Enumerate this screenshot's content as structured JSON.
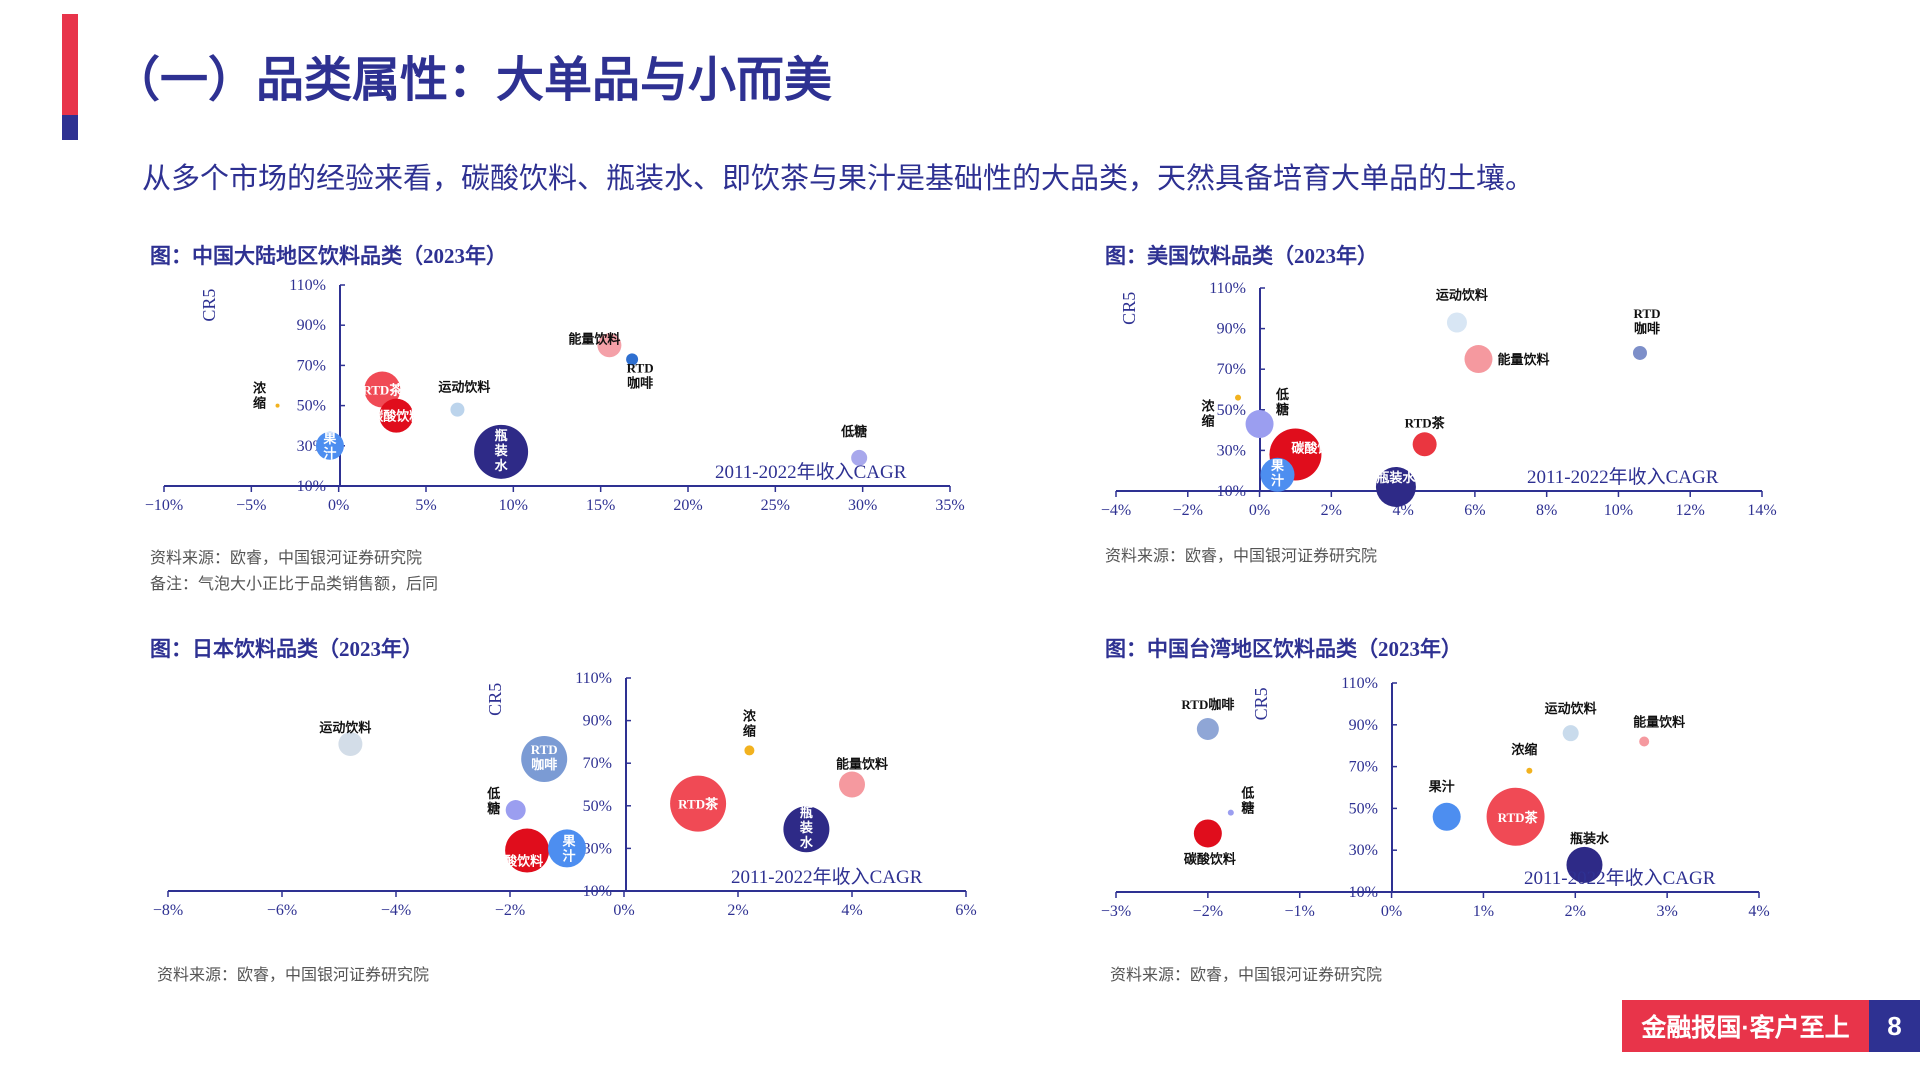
{
  "header": {
    "title": "（一）品类属性：大单品与小而美",
    "subtitle": "从多个市场的经验来看，碳酸饮料、瓶装水、即饮茶与果汁是基础性的大品类，天然具备培育大单品的土壤。"
  },
  "footer": {
    "brand": "金融报国·客户至上",
    "page": "8"
  },
  "colors": {
    "accent": "#e8344a",
    "brand": "#2e3192"
  },
  "panels": [
    {
      "title": "图：中国大陆地区饮料品类（2023年）",
      "source": "资料来源：欧睿，中国银河证券研究院",
      "note": "备注：气泡大小正比于品类销售额，后同"
    },
    {
      "title": "图：美国饮料品类（2023年）",
      "source": "资料来源：欧睿，中国银河证券研究院"
    },
    {
      "title": "图：日本饮料品类（2023年）",
      "source": "资料来源：欧睿，中国银河证券研究院"
    },
    {
      "title": "图：中国台湾地区饮料品类（2023年）",
      "source": "资料来源：欧睿，中国银河证券研究院"
    }
  ],
  "chart_data": [
    {
      "type": "scatter",
      "title": "中国大陆地区饮料品类（2023年）",
      "xlabel": "2011-2022年收入CAGR",
      "ylabel": "CR5",
      "xlim": [
        -10,
        35
      ],
      "ylim": [
        10,
        110
      ],
      "xticks": [
        -10,
        -5,
        0,
        5,
        10,
        15,
        20,
        25,
        30,
        35
      ],
      "yticks": [
        10,
        30,
        50,
        70,
        90,
        110
      ],
      "xtick_labels": [
        "−10%",
        "−5%",
        "0%",
        "5%",
        "10%",
        "15%",
        "20%",
        "25%",
        "30%",
        "35%"
      ],
      "ytick_labels": [
        "10%",
        "30%",
        "50%",
        "70%",
        "90%",
        "110%"
      ],
      "points": [
        {
          "name": "能量饮料",
          "x": 15.5,
          "y": 80,
          "size": 12,
          "color": "#f4a0a8",
          "label_x": -15,
          "label_y": -2,
          "label_inside": false
        },
        {
          "name": "RTD\n咖啡",
          "x": 16.8,
          "y": 73,
          "size": 6,
          "color": "#2e6fd0",
          "label_x": 8,
          "label_y": 13,
          "label_inside": false
        },
        {
          "name": "RTD茶",
          "x": 2.5,
          "y": 58,
          "size": 18,
          "color": "#f04a55",
          "label_x": 0,
          "label_y": 5,
          "label_inside": true
        },
        {
          "name": "碳酸饮料",
          "x": 3.3,
          "y": 45,
          "size": 17,
          "color": "#e00d1c",
          "label_x": 0,
          "label_y": 5,
          "label_inside": true
        },
        {
          "name": "运动饮料",
          "x": 6.8,
          "y": 48,
          "size": 7,
          "color": "#bcd4ec",
          "label_x": 7,
          "label_y": -18,
          "label_inside": false
        },
        {
          "name": "浓\n缩",
          "x": -3.5,
          "y": 50,
          "size": 2,
          "color": "#f2b21f",
          "label_x": -18,
          "label_y": -13,
          "label_inside": false
        },
        {
          "name": "果\n汁",
          "x": -0.5,
          "y": 30,
          "size": 14,
          "color": "#4d8ef0",
          "label_x": 0,
          "label_y": -3,
          "label_inside": true
        },
        {
          "name": "瓶\n装\n水",
          "x": 9.3,
          "y": 27,
          "size": 27,
          "color": "#2e2a87",
          "label_x": 0,
          "label_y": -12,
          "label_inside": true
        },
        {
          "name": "低糖",
          "x": 29.8,
          "y": 24,
          "size": 8,
          "color": "#a8a8ec",
          "label_x": -5,
          "label_y": -22,
          "label_inside": false
        }
      ]
    },
    {
      "type": "scatter",
      "title": "美国饮料品类（2023年）",
      "xlabel": "2011-2022年收入CAGR",
      "ylabel": "CR5",
      "xlim": [
        -4,
        14
      ],
      "ylim": [
        10,
        110
      ],
      "xticks": [
        -4,
        -2,
        0,
        2,
        4,
        6,
        8,
        10,
        12,
        14
      ],
      "yticks": [
        10,
        30,
        50,
        70,
        90,
        110
      ],
      "xtick_labels": [
        "−4%",
        "−2%",
        "0%",
        "2%",
        "4%",
        "6%",
        "8%",
        "10%",
        "12%",
        "14%"
      ],
      "ytick_labels": [
        "10%",
        "30%",
        "50%",
        "70%",
        "90%",
        "110%"
      ],
      "points": [
        {
          "name": "运动饮料",
          "x": 5.5,
          "y": 93,
          "size": 10,
          "color": "#d8e6f4",
          "label_x": 5,
          "label_y": -23,
          "label_inside": false
        },
        {
          "name": "RTD\n咖啡",
          "x": 10.6,
          "y": 78,
          "size": 7,
          "color": "#7d8fc9",
          "label_x": 7,
          "label_y": -35,
          "label_inside": false
        },
        {
          "name": "能量饮料",
          "x": 6.1,
          "y": 75,
          "size": 14,
          "color": "#f5999f",
          "label_x": 45,
          "label_y": 5,
          "label_inside": false
        },
        {
          "name": "浓\n缩",
          "x": -0.6,
          "y": 56,
          "size": 3,
          "color": "#f2b21f",
          "label_x": -30,
          "label_y": 13,
          "label_inside": false
        },
        {
          "name": "低\n糖",
          "x": 0.0,
          "y": 43,
          "size": 14,
          "color": "#9b9ef0",
          "label_x": 23,
          "label_y": -25,
          "label_inside": false
        },
        {
          "name": "RTD茶",
          "x": 4.6,
          "y": 33,
          "size": 12,
          "color": "#ea3640",
          "label_x": 0,
          "label_y": -17,
          "label_inside": false
        },
        {
          "name": "碳酸饮料",
          "x": 1.0,
          "y": 28,
          "size": 26,
          "color": "#e00d1c",
          "label_x": 22,
          "label_y": -2,
          "label_inside": true
        },
        {
          "name": "果\n汁",
          "x": 0.5,
          "y": 18,
          "size": 17,
          "color": "#4d8ef0",
          "label_x": 0,
          "label_y": -5,
          "label_inside": true
        },
        {
          "name": "瓶装水",
          "x": 3.8,
          "y": 12,
          "size": 20,
          "color": "#2e2a87",
          "label_x": 0,
          "label_y": -5,
          "label_inside": true
        }
      ]
    },
    {
      "type": "scatter",
      "title": "日本饮料品类（2023年）",
      "xlabel": "2011-2022年收入CAGR",
      "ylabel": "CR5",
      "xlim": [
        -8,
        6
      ],
      "ylim": [
        10,
        110
      ],
      "xticks": [
        -8,
        -6,
        -4,
        -2,
        0,
        2,
        4,
        6
      ],
      "yticks": [
        10,
        30,
        50,
        70,
        90,
        110
      ],
      "xtick_labels": [
        "−8%",
        "−6%",
        "−4%",
        "−2%",
        "0%",
        "2%",
        "4%",
        "6%"
      ],
      "ytick_labels": [
        "10%",
        "30%",
        "50%",
        "70%",
        "90%",
        "110%"
      ],
      "points": [
        {
          "name": "运动饮料",
          "x": -4.8,
          "y": 79,
          "size": 12,
          "color": "#d3dde8",
          "label_x": -5,
          "label_y": -12,
          "label_inside": false
        },
        {
          "name": "RTD\n咖啡",
          "x": -1.4,
          "y": 72,
          "size": 23,
          "color": "#7b9bd4",
          "label_x": 0,
          "label_y": -5,
          "label_inside": true
        },
        {
          "name": "浓\n缩",
          "x": 2.2,
          "y": 76,
          "size": 5,
          "color": "#f2b21f",
          "label_x": 0,
          "label_y": -30,
          "label_inside": false
        },
        {
          "name": "能量饮料",
          "x": 4.0,
          "y": 60,
          "size": 13,
          "color": "#f5999f",
          "label_x": 10,
          "label_y": -16,
          "label_inside": false
        },
        {
          "name": "RTD茶",
          "x": 1.3,
          "y": 51,
          "size": 28,
          "color": "#f04a55",
          "label_x": 0,
          "label_y": 5,
          "label_inside": true
        },
        {
          "name": "低\n糖",
          "x": -1.9,
          "y": 48,
          "size": 10,
          "color": "#9b9ef0",
          "label_x": -22,
          "label_y": -12,
          "label_inside": false
        },
        {
          "name": "瓶\n装\n水",
          "x": 3.2,
          "y": 39,
          "size": 23,
          "color": "#2e2a87",
          "label_x": 0,
          "label_y": -12,
          "label_inside": true
        },
        {
          "name": "碳酸饮料",
          "x": -1.7,
          "y": 29,
          "size": 22,
          "color": "#e00d1c",
          "label_x": -10,
          "label_y": 15,
          "label_inside": true
        },
        {
          "name": "果\n汁",
          "x": -1.0,
          "y": 30,
          "size": 19,
          "color": "#4d8ef0",
          "label_x": 2,
          "label_y": -3,
          "label_inside": true
        }
      ]
    },
    {
      "type": "scatter",
      "title": "中国台湾地区饮料品类（2023年）",
      "xlabel": "2011-2022年收入CAGR",
      "ylabel": "CR5",
      "xlim": [
        -3,
        4
      ],
      "ylim": [
        10,
        110
      ],
      "xticks": [
        -3,
        -2,
        -1,
        0,
        1,
        2,
        3,
        4
      ],
      "yticks": [
        10,
        30,
        50,
        70,
        90,
        110
      ],
      "xtick_labels": [
        "−3%",
        "−2%",
        "−1%",
        "0%",
        "1%",
        "2%",
        "3%",
        "4%"
      ],
      "ytick_labels": [
        "10%",
        "30%",
        "50%",
        "70%",
        "90%",
        "110%"
      ],
      "points": [
        {
          "name": "RTD咖啡",
          "x": -2.0,
          "y": 88,
          "size": 11,
          "color": "#8fa6d6",
          "label_x": 0,
          "label_y": -20,
          "label_inside": false
        },
        {
          "name": "运动饮料",
          "x": 1.95,
          "y": 86,
          "size": 8,
          "color": "#c9dbec",
          "label_x": 0,
          "label_y": -20,
          "label_inside": false
        },
        {
          "name": "能量饮料",
          "x": 2.75,
          "y": 82,
          "size": 5,
          "color": "#f5999f",
          "label_x": 15,
          "label_y": -15,
          "label_inside": false
        },
        {
          "name": "浓缩",
          "x": 1.5,
          "y": 68,
          "size": 3,
          "color": "#f2b21f",
          "label_x": -5,
          "label_y": -17,
          "label_inside": false
        },
        {
          "name": "低\n糖",
          "x": -1.75,
          "y": 48,
          "size": 3,
          "color": "#9b9ef0",
          "label_x": 17,
          "label_y": -15,
          "label_inside": false
        },
        {
          "name": "果汁",
          "x": 0.6,
          "y": 46,
          "size": 14,
          "color": "#4d8ef0",
          "label_x": -5,
          "label_y": -26,
          "label_inside": false
        },
        {
          "name": "RTD茶",
          "x": 1.35,
          "y": 46,
          "size": 29,
          "color": "#f04a55",
          "label_x": 2,
          "label_y": 5,
          "label_inside": true
        },
        {
          "name": "碳酸饮料",
          "x": -2.0,
          "y": 38,
          "size": 14,
          "color": "#e00d1c",
          "label_x": 2,
          "label_y": 30,
          "label_inside": false
        },
        {
          "name": "瓶装水",
          "x": 2.1,
          "y": 23,
          "size": 18,
          "color": "#2e2a87",
          "label_x": 5,
          "label_y": -22,
          "label_inside": false
        }
      ]
    }
  ]
}
